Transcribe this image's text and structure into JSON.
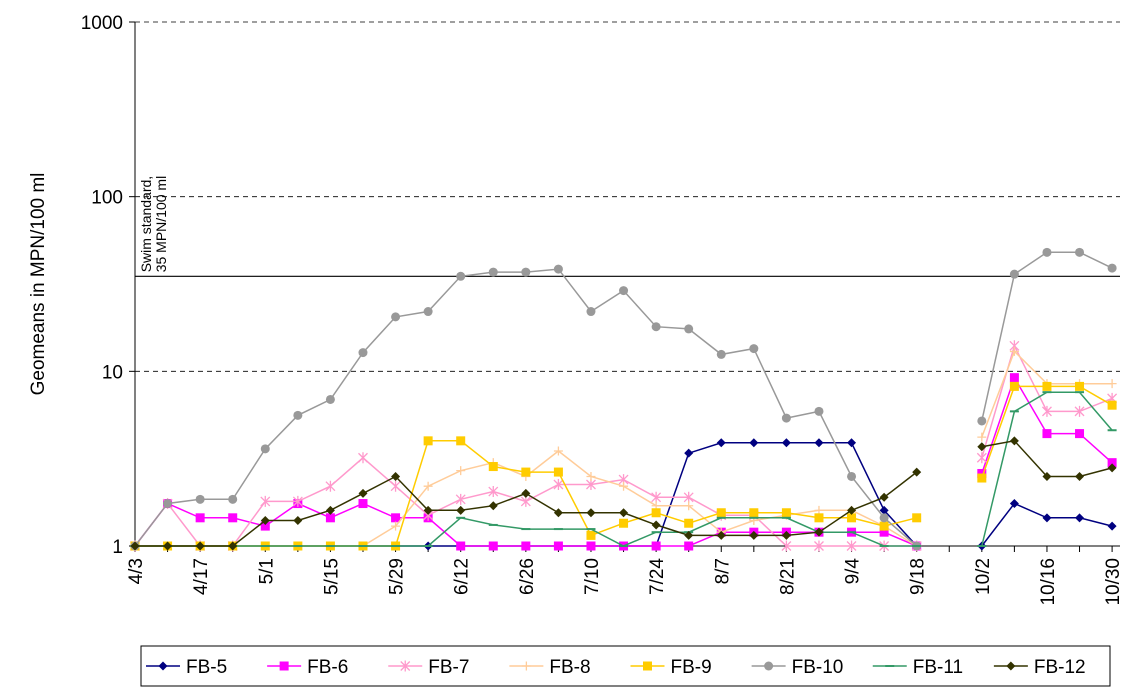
{
  "chart_data": {
    "type": "line",
    "y_label": "Geomeans in MPN/100 ml",
    "log_scale": true,
    "grid": true,
    "legend": "bottom",
    "ylim": [
      1,
      1000
    ],
    "yticks": [
      1,
      10,
      100,
      1000
    ],
    "reference_line": {
      "value": 35,
      "label": [
        "Swim standard,",
        "35 MPN/100 ml"
      ]
    },
    "categories": [
      "4/3",
      null,
      "4/17",
      null,
      "5/1",
      null,
      "5/15",
      null,
      "5/29",
      null,
      "6/12",
      null,
      "6/26",
      null,
      "7/10",
      null,
      "7/24",
      null,
      "8/7",
      null,
      "8/21",
      null,
      "9/4",
      null,
      "9/18",
      null,
      "10/2",
      null,
      "10/16",
      null,
      "10/30"
    ],
    "series": [
      {
        "name": "FB-5",
        "color": "#000080",
        "marker": "diamond",
        "values": [
          1,
          1,
          1,
          1,
          1,
          1,
          1,
          1,
          1,
          1,
          1,
          1,
          1,
          1,
          1,
          1,
          1,
          3.4,
          3.9,
          3.9,
          3.9,
          3.9,
          3.9,
          1.6,
          1,
          null,
          1,
          1.75,
          1.45,
          1.45,
          1.3
        ]
      },
      {
        "name": "FB-6",
        "color": "#ff00ff",
        "marker": "square",
        "values": [
          1,
          1.75,
          1.45,
          1.45,
          1.3,
          1.75,
          1.45,
          1.75,
          1.45,
          1.45,
          1,
          1,
          1,
          1,
          1,
          1,
          1,
          1,
          1.2,
          1.2,
          1.2,
          1.2,
          1.2,
          1.2,
          1,
          null,
          2.6,
          9.2,
          4.4,
          4.4,
          3.0
        ]
      },
      {
        "name": "FB-7",
        "color": "#ff99cc",
        "marker": "star",
        "values": [
          1,
          1.75,
          1,
          1,
          1.8,
          1.8,
          2.2,
          3.2,
          2.2,
          1.5,
          1.85,
          2.05,
          1.8,
          2.25,
          2.25,
          2.4,
          1.9,
          1.9,
          1.5,
          1.5,
          1,
          1,
          1,
          1,
          1,
          null,
          3.2,
          14,
          5.9,
          5.9,
          7
        ]
      },
      {
        "name": "FB-8",
        "color": "#ffcc99",
        "marker": "plus",
        "values": [
          1,
          1,
          1,
          1,
          1,
          1,
          1,
          1,
          1.3,
          2.2,
          2.7,
          3.0,
          2.5,
          3.5,
          2.5,
          2.2,
          1.7,
          1.7,
          1.2,
          1.4,
          1.5,
          1.6,
          1.6,
          1.3,
          1,
          null,
          4.2,
          13,
          8.5,
          8.5,
          8.5
        ]
      },
      {
        "name": "FB-9",
        "color": "#ffcc00",
        "marker": "square",
        "values": [
          1,
          1,
          1,
          1,
          1,
          1,
          1,
          1,
          1,
          4,
          4,
          2.85,
          2.65,
          2.65,
          1.15,
          1.35,
          1.55,
          1.35,
          1.55,
          1.55,
          1.55,
          1.45,
          1.45,
          1.3,
          1.45,
          null,
          2.45,
          8.2,
          8.2,
          8.2,
          6.4
        ]
      },
      {
        "name": "FB-10",
        "color": "#999999",
        "marker": "circle",
        "values": [
          1,
          1.75,
          1.85,
          1.85,
          3.6,
          5.6,
          6.9,
          12.8,
          20.5,
          22,
          35,
          37,
          37,
          38.5,
          22,
          29,
          18,
          17.5,
          12.5,
          13.5,
          5.4,
          5.9,
          2.5,
          1.45,
          1,
          null,
          5.2,
          36,
          48,
          48,
          39
        ]
      },
      {
        "name": "FB-11",
        "color": "#339966",
        "marker": "dash",
        "values": [
          1,
          1,
          1,
          1,
          1,
          1,
          1,
          1,
          1,
          1,
          1.45,
          1.32,
          1.25,
          1.25,
          1.25,
          1,
          1.2,
          1.2,
          1.45,
          1.45,
          1.45,
          1.2,
          1.2,
          1,
          1,
          null,
          1,
          5.9,
          7.6,
          7.6,
          4.6
        ]
      },
      {
        "name": "FB-12",
        "color": "#333300",
        "marker": "diamond",
        "values": [
          1,
          1,
          1,
          1,
          1.4,
          1.4,
          1.6,
          2,
          2.5,
          1.6,
          1.6,
          1.7,
          2,
          1.55,
          1.55,
          1.55,
          1.32,
          1.15,
          1.15,
          1.15,
          1.15,
          1.2,
          1.6,
          1.9,
          2.65,
          null,
          3.7,
          4,
          2.5,
          2.5,
          2.8
        ]
      }
    ]
  }
}
